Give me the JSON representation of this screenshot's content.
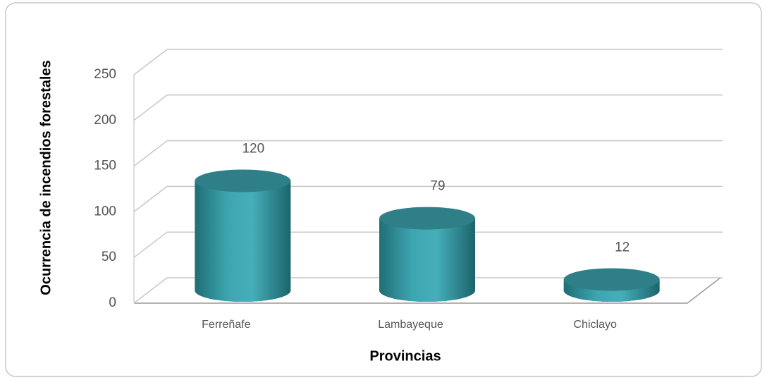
{
  "chart_data": {
    "type": "bar3d",
    "x_label": "Provincias",
    "y_label": "Ocurrencia de incendios forestales",
    "categories": [
      "Ferreñafe",
      "Lambayeque",
      "Chiclayo"
    ],
    "values": [
      120,
      79,
      12
    ],
    "color": "#3a9ba6",
    "ylim": [
      0,
      250
    ],
    "yticks": [
      0,
      50,
      100,
      150,
      200,
      250
    ],
    "grid": true
  }
}
